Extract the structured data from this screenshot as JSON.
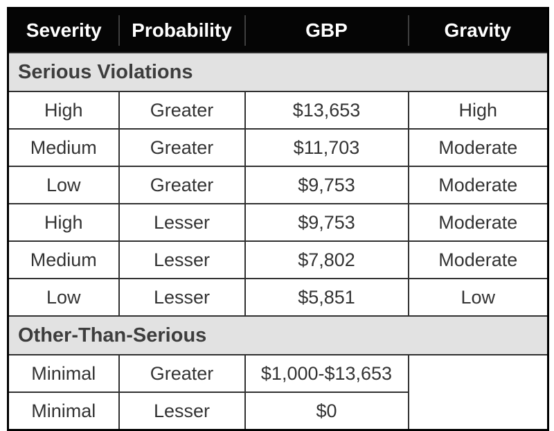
{
  "chart_data": {
    "type": "table",
    "columns": [
      "Severity",
      "Probability",
      "GBP",
      "Gravity"
    ],
    "sections": [
      {
        "label": "Serious Violations",
        "rows": [
          [
            "High",
            "Greater",
            "$13,653",
            "High"
          ],
          [
            "Medium",
            "Greater",
            "$11,703",
            "Moderate"
          ],
          [
            "Low",
            "Greater",
            "$9,753",
            "Moderate"
          ],
          [
            "High",
            "Lesser",
            "$9,753",
            "Moderate"
          ],
          [
            "Medium",
            "Lesser",
            "$7,802",
            "Moderate"
          ],
          [
            "Low",
            "Lesser",
            "$5,851",
            "Low"
          ]
        ]
      },
      {
        "label": "Other-Than-Serious",
        "rows": [
          [
            "Minimal",
            "Greater",
            "$1,000-$13,653",
            ""
          ],
          [
            "Minimal",
            "Lesser",
            "$0",
            ""
          ]
        ]
      }
    ]
  },
  "colors": {
    "header_bg": "#050505",
    "header_text": "#ffffff",
    "section_bg": "#e2e2e2",
    "section_text": "#3d3d3d",
    "body_text": "#333333",
    "border": "#303030",
    "outer_border": "#000000"
  }
}
